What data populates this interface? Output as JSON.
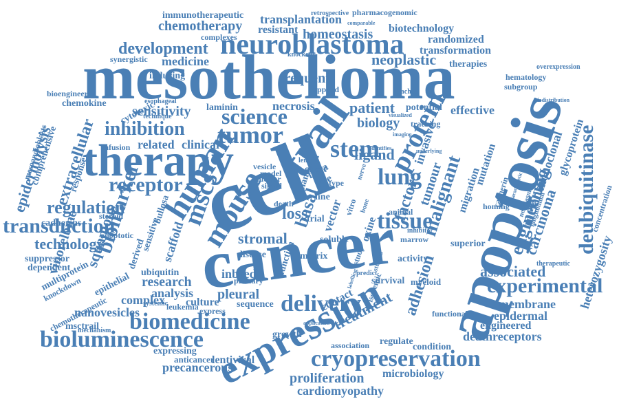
{
  "colors": {
    "word": "#4a7fb5",
    "background": "#ffffff"
  },
  "words": [
    "mesothelioma",
    "cancer",
    "cell",
    "apoptosis",
    "therapy",
    "expression",
    "trail",
    "neuroblastoma",
    "human",
    "mouse",
    "protein",
    "tumor",
    "science",
    "bioluminescence",
    "biomedicine",
    "cryopreservation",
    "delivery",
    "deubiquitinase",
    "experimental",
    "inhibition",
    "receptor",
    "transduction",
    "regulation",
    "development",
    "medicine",
    "chemotherapy",
    "transplantation",
    "immunotherapeutic",
    "homeostasis",
    "biotechnology",
    "randomized",
    "transformation",
    "neoplastic",
    "frequent",
    "sensitivity",
    "patient",
    "biology",
    "stem",
    "lung",
    "tissue",
    "malignant",
    "engineering",
    "melanoma",
    "carcinoma",
    "monoclonal",
    "glycoprotein",
    "heterozygosity",
    "associated",
    "membrane",
    "epidermal",
    "engineered",
    "deathreceptors",
    "adhesion",
    "treatment",
    "proliferation",
    "cardiomyopathy",
    "microbiology",
    "precancerous",
    "lentiviral",
    "anticancer",
    "expressing",
    "nanovesicles",
    "msctrail",
    "leukemia",
    "analysis",
    "complex",
    "research",
    "ubiquitin",
    "pleural",
    "culture",
    "stromal",
    "inbred",
    "mscs",
    "biomarker",
    "squamous",
    "vinorelbine",
    "technology",
    "epidermolysis",
    "extracellular",
    "cadherins",
    "suppressor",
    "dependent",
    "multiprotein",
    "knockdown",
    "related",
    "clinical",
    "necrosis",
    "laminin",
    "ligand",
    "factor",
    "invasive",
    "tumour",
    "effective",
    "potential",
    "tracking",
    "migration",
    "mutation",
    "resistant",
    "pharmacogenomic",
    "retrospective",
    "comparable",
    "complexes",
    "knockout",
    "trachea",
    "overexpression",
    "therapies",
    "hematology",
    "subgroup",
    "biodistribution",
    "concentration",
    "homing",
    "superior",
    "therapeutic",
    "growth",
    "regulate",
    "condition",
    "functional",
    "survival",
    "myeloid",
    "contact",
    "sequence",
    "systemic",
    "mechanism",
    "inducing",
    "synergistic",
    "bioengineered",
    "chemokine",
    "mesoangioblasts",
    "comprehensive",
    "infusion",
    "response",
    "cytotoxic",
    "esophageal",
    "technique",
    "applied",
    "scaffold",
    "bullosa",
    "sensitive",
    "apoptotic",
    "steroid",
    "derived",
    "epithelial",
    "chemotherapeutic",
    "disease",
    "matrix",
    "soluble",
    "activity",
    "primary",
    "function",
    "oxine",
    "vector",
    "basal",
    "loss",
    "marrow",
    "inhibitor",
    "animal",
    "model",
    "vesicle",
    "nano",
    "ghost",
    "brca",
    "nuclear",
    "signal",
    "death",
    "life",
    "length",
    "line",
    "type",
    "trial",
    "vitro",
    "nerve",
    "bone",
    "study",
    "studies",
    "predict",
    "labelling",
    "ischemic",
    "association",
    "application",
    "neoplasm",
    "longitudinal",
    "characteristic",
    "identifies",
    "underlying",
    "imaging",
    "visualized",
    "express",
    "cadherin"
  ]
}
